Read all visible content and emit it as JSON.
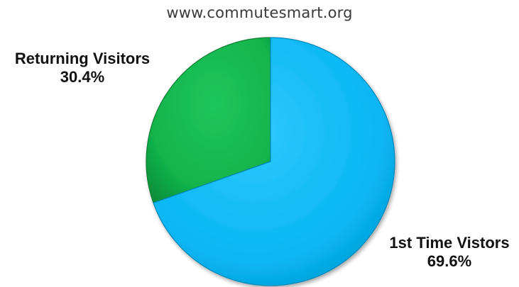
{
  "chart_data": {
    "type": "pie",
    "title": "www.commutesmart.org",
    "categories": [
      "Returning Visitors",
      "1st Time Vistors"
    ],
    "values": [
      30.4,
      69.6
    ],
    "labels": [
      "30.4%",
      "69.6%"
    ],
    "colors": [
      "#14b84f",
      "#0ab8f5"
    ],
    "start": "top",
    "direction": "counterclockwise-for-first-slice"
  }
}
